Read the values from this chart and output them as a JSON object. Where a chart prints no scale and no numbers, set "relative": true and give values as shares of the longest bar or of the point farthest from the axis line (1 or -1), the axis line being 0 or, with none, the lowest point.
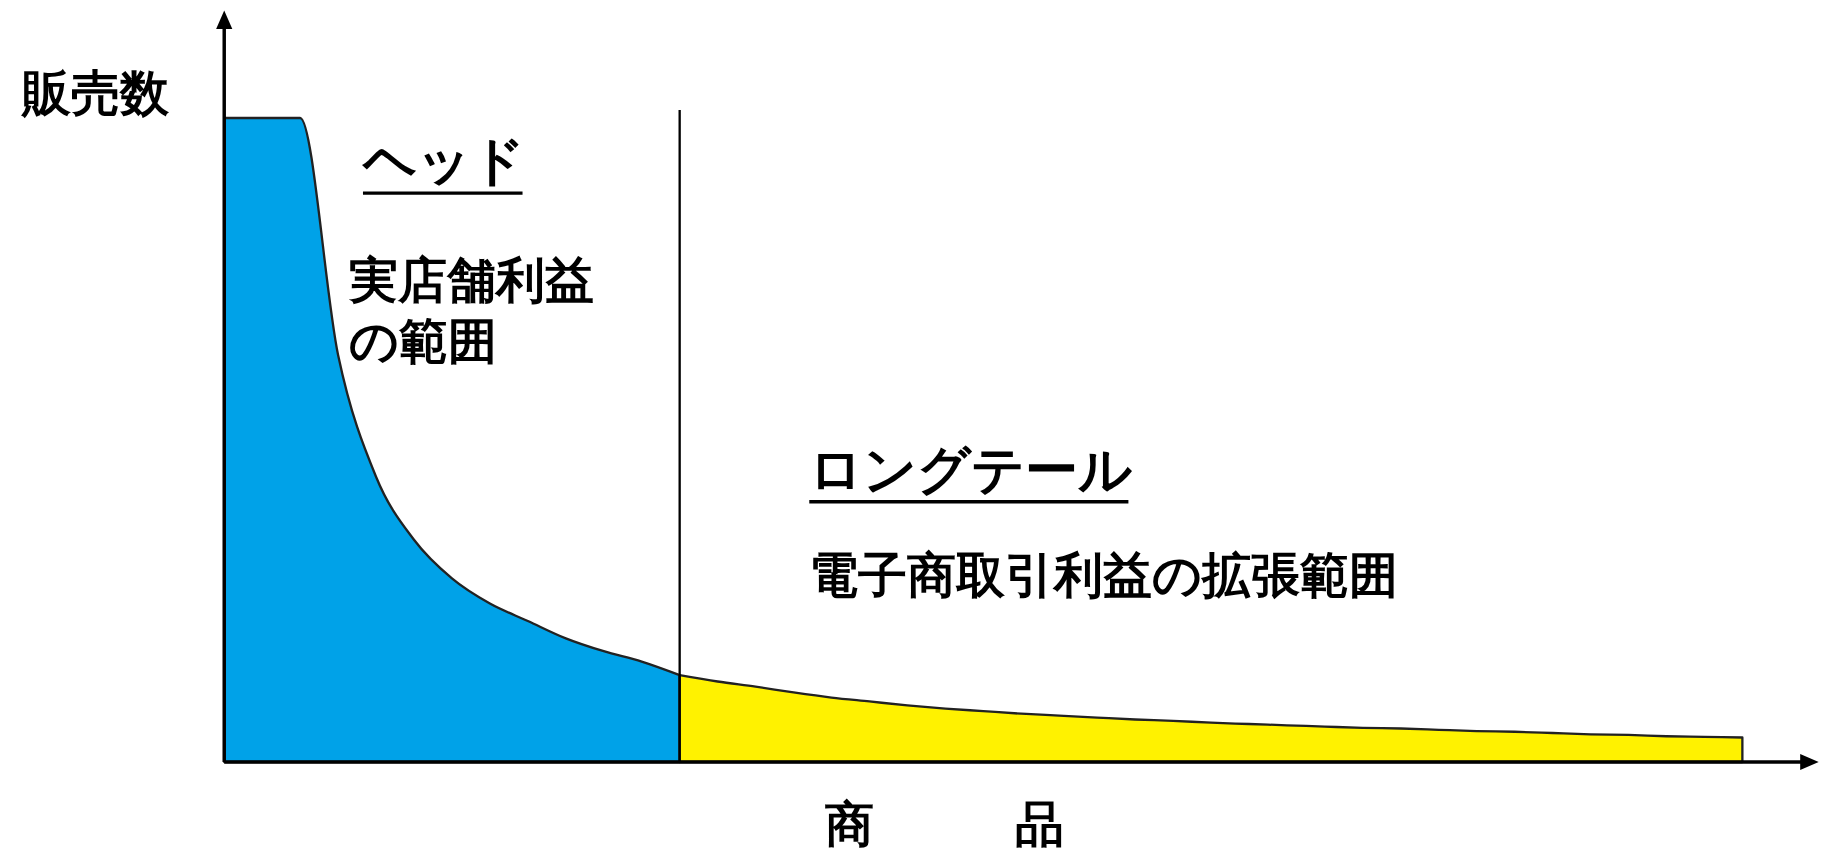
{
  "chart_data": {
    "type": "area",
    "relative": true,
    "xlabel": "商　品",
    "ylabel": "販売数",
    "categories": [
      null,
      null,
      null,
      null,
      null,
      null,
      null,
      null,
      null,
      null,
      null,
      null,
      null,
      null,
      null,
      null,
      null,
      null,
      null,
      null,
      null,
      null,
      null,
      null,
      null,
      null,
      null,
      null,
      null,
      null,
      null,
      null,
      null,
      null,
      null,
      null,
      null,
      null,
      null,
      null,
      null
    ],
    "series": [
      {
        "color": "#00a2e8",
        "values": [
          1,
          1,
          1,
          0.632,
          0.443,
          0.345,
          0.285,
          0.246,
          0.219,
          0.192,
          0.172,
          0.156,
          0.135,
          null,
          null,
          null,
          null,
          null,
          null,
          null,
          null,
          null,
          null,
          null,
          null,
          null,
          null,
          null,
          null,
          null,
          null,
          null,
          null,
          null,
          null,
          null,
          null,
          null,
          null,
          null,
          null
        ]
      },
      {
        "color": "#fff200",
        "values": [
          null,
          null,
          null,
          null,
          null,
          null,
          null,
          null,
          null,
          null,
          null,
          null,
          0.135,
          0.125,
          0.117,
          0.108,
          0.1,
          0.094,
          0.088,
          0.083,
          0.079,
          0.075,
          0.072,
          0.069,
          0.066,
          0.064,
          0.061,
          0.059,
          0.057,
          0.055,
          0.053,
          0.052,
          0.05,
          0.048,
          0.047,
          0.045,
          0.043,
          0.042,
          0.04,
          0.039,
          0.038
        ]
      }
    ],
    "annotations": [
      "ヘッド",
      "実店舗利益の範囲",
      "ロングテール",
      "電子商取引利益の拡張範囲"
    ]
  }
}
